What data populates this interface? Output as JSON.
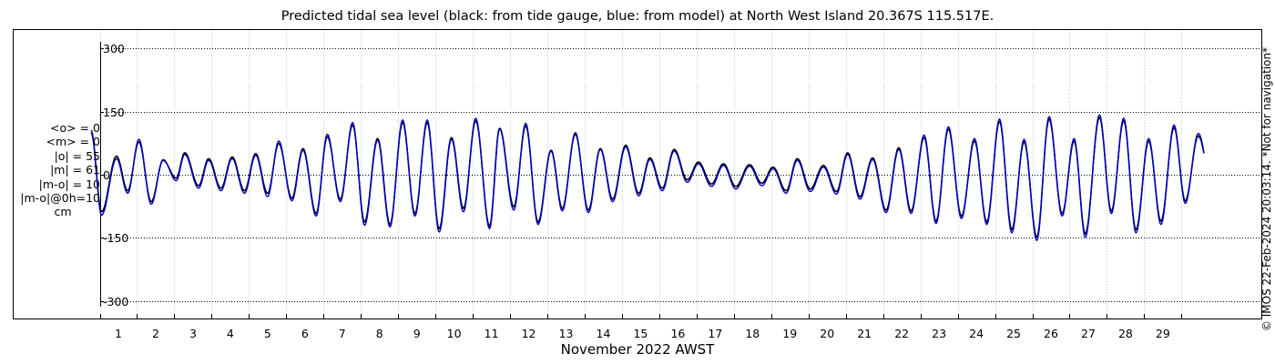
{
  "chart_data": {
    "type": "line",
    "title": "Predicted tidal sea level (black: from tide gauge, blue: from model) at North West Island 20.367S 115.517E.",
    "xlabel": "November 2022 AWST",
    "ylabel": "",
    "ylim": [
      -320,
      320
    ],
    "yticks": [
      -300,
      -150,
      0,
      150,
      300
    ],
    "ytick_labels": [
      "-300",
      "-150",
      "0",
      "150",
      "300"
    ],
    "xticks": [
      1,
      2,
      3,
      4,
      5,
      6,
      7,
      8,
      9,
      10,
      11,
      12,
      13,
      14,
      15,
      16,
      17,
      18,
      19,
      20,
      21,
      22,
      23,
      24,
      25,
      26,
      27,
      28,
      29
    ],
    "xlim": [
      -0.4,
      30.1
    ],
    "x_unit": "day of November 2022",
    "grid": true,
    "series": [
      {
        "color": "#000000",
        "peaks": [
          [
            0.27,
            100
          ],
          [
            0.55,
            -88
          ],
          [
            0.95,
            44
          ],
          [
            1.25,
            -38
          ],
          [
            1.55,
            78
          ],
          [
            1.88,
            -64
          ],
          [
            2.2,
            34
          ],
          [
            2.55,
            -8
          ],
          [
            2.78,
            52
          ],
          [
            3.15,
            -26
          ],
          [
            3.42,
            38
          ],
          [
            3.75,
            -32
          ],
          [
            4.05,
            42
          ],
          [
            4.38,
            -38
          ],
          [
            4.68,
            50
          ],
          [
            5.0,
            -44
          ],
          [
            5.3,
            74
          ],
          [
            5.65,
            -56
          ],
          [
            5.95,
            62
          ],
          [
            6.3,
            -92
          ],
          [
            6.6,
            90
          ],
          [
            6.95,
            -58
          ],
          [
            7.28,
            118
          ],
          [
            7.6,
            -112
          ],
          [
            7.95,
            86
          ],
          [
            8.28,
            -118
          ],
          [
            8.62,
            124
          ],
          [
            8.95,
            -92
          ],
          [
            9.28,
            124
          ],
          [
            9.6,
            -128
          ],
          [
            9.93,
            88
          ],
          [
            10.25,
            -80
          ],
          [
            10.58,
            128
          ],
          [
            10.95,
            -122
          ],
          [
            11.22,
            110
          ],
          [
            11.6,
            -76
          ],
          [
            11.92,
            116
          ],
          [
            12.25,
            -112
          ],
          [
            12.6,
            58
          ],
          [
            12.9,
            -80
          ],
          [
            13.25,
            96
          ],
          [
            13.6,
            -84
          ],
          [
            13.92,
            62
          ],
          [
            14.25,
            -58
          ],
          [
            14.6,
            70
          ],
          [
            14.95,
            -44
          ],
          [
            15.25,
            40
          ],
          [
            15.58,
            -32
          ],
          [
            15.9,
            60
          ],
          [
            16.25,
            -12
          ],
          [
            16.55,
            30
          ],
          [
            16.9,
            -22
          ],
          [
            17.22,
            26
          ],
          [
            17.55,
            -28
          ],
          [
            17.92,
            24
          ],
          [
            18.25,
            -20
          ],
          [
            18.55,
            18
          ],
          [
            18.9,
            -38
          ],
          [
            19.2,
            38
          ],
          [
            19.55,
            -34
          ],
          [
            19.9,
            22
          ],
          [
            20.25,
            -40
          ],
          [
            20.55,
            52
          ],
          [
            20.88,
            -52
          ],
          [
            21.22,
            40
          ],
          [
            21.58,
            -84
          ],
          [
            21.92,
            64
          ],
          [
            22.25,
            -86
          ],
          [
            22.6,
            88
          ],
          [
            22.92,
            -110
          ],
          [
            23.25,
            108
          ],
          [
            23.6,
            -98
          ],
          [
            23.95,
            80
          ],
          [
            24.28,
            -112
          ],
          [
            24.62,
            126
          ],
          [
            24.95,
            -130
          ],
          [
            25.28,
            78
          ],
          [
            25.62,
            -148
          ],
          [
            25.95,
            132
          ],
          [
            26.3,
            -92
          ],
          [
            26.62,
            80
          ],
          [
            26.92,
            -140
          ],
          [
            27.3,
            136
          ],
          [
            27.62,
            -86
          ],
          [
            27.95,
            128
          ],
          [
            28.28,
            -130
          ],
          [
            28.62,
            80
          ],
          [
            28.95,
            -110
          ],
          [
            29.3,
            112
          ],
          [
            29.6,
            -62
          ],
          [
            29.95,
            92
          ],
          [
            30.35,
            -42
          ]
        ]
      },
      {
        "color": "#0000cc",
        "peaks": [
          [
            0.27,
            106
          ],
          [
            0.55,
            -96
          ],
          [
            0.95,
            38
          ],
          [
            1.25,
            -44
          ],
          [
            1.55,
            84
          ],
          [
            1.88,
            -70
          ],
          [
            2.2,
            36
          ],
          [
            2.55,
            -14
          ],
          [
            2.78,
            48
          ],
          [
            3.15,
            -32
          ],
          [
            3.42,
            34
          ],
          [
            3.75,
            -38
          ],
          [
            4.05,
            38
          ],
          [
            4.38,
            -44
          ],
          [
            4.68,
            46
          ],
          [
            5.0,
            -52
          ],
          [
            5.3,
            80
          ],
          [
            5.65,
            -62
          ],
          [
            5.95,
            58
          ],
          [
            6.3,
            -98
          ],
          [
            6.6,
            96
          ],
          [
            6.95,
            -64
          ],
          [
            7.28,
            124
          ],
          [
            7.6,
            -120
          ],
          [
            7.95,
            82
          ],
          [
            8.28,
            -124
          ],
          [
            8.62,
            130
          ],
          [
            8.95,
            -98
          ],
          [
            9.28,
            130
          ],
          [
            9.6,
            -136
          ],
          [
            9.93,
            84
          ],
          [
            10.25,
            -88
          ],
          [
            10.58,
            134
          ],
          [
            10.95,
            -128
          ],
          [
            11.22,
            108
          ],
          [
            11.6,
            -84
          ],
          [
            11.92,
            122
          ],
          [
            12.25,
            -118
          ],
          [
            12.6,
            56
          ],
          [
            12.9,
            -86
          ],
          [
            13.25,
            100
          ],
          [
            13.6,
            -90
          ],
          [
            13.92,
            60
          ],
          [
            14.25,
            -64
          ],
          [
            14.6,
            66
          ],
          [
            14.95,
            -50
          ],
          [
            15.25,
            36
          ],
          [
            15.58,
            -38
          ],
          [
            15.9,
            56
          ],
          [
            16.25,
            -18
          ],
          [
            16.55,
            26
          ],
          [
            16.9,
            -28
          ],
          [
            17.22,
            22
          ],
          [
            17.55,
            -34
          ],
          [
            17.92,
            20
          ],
          [
            18.25,
            -26
          ],
          [
            18.55,
            14
          ],
          [
            18.9,
            -44
          ],
          [
            19.2,
            34
          ],
          [
            19.55,
            -40
          ],
          [
            19.9,
            18
          ],
          [
            20.25,
            -46
          ],
          [
            20.55,
            48
          ],
          [
            20.88,
            -58
          ],
          [
            21.22,
            36
          ],
          [
            21.58,
            -90
          ],
          [
            21.92,
            60
          ],
          [
            22.25,
            -92
          ],
          [
            22.6,
            94
          ],
          [
            22.92,
            -116
          ],
          [
            23.25,
            114
          ],
          [
            23.6,
            -104
          ],
          [
            23.95,
            86
          ],
          [
            24.28,
            -118
          ],
          [
            24.62,
            132
          ],
          [
            24.95,
            -138
          ],
          [
            25.28,
            84
          ],
          [
            25.62,
            -156
          ],
          [
            25.95,
            138
          ],
          [
            26.3,
            -98
          ],
          [
            26.62,
            86
          ],
          [
            26.92,
            -148
          ],
          [
            27.3,
            142
          ],
          [
            27.62,
            -92
          ],
          [
            27.95,
            134
          ],
          [
            28.28,
            -138
          ],
          [
            28.62,
            86
          ],
          [
            28.95,
            -118
          ],
          [
            29.3,
            118
          ],
          [
            29.6,
            -68
          ],
          [
            29.95,
            98
          ],
          [
            30.35,
            -48
          ]
        ]
      }
    ]
  },
  "stats": {
    "mean_obs": "<o> = 0",
    "mean_model": "<m> = 0",
    "abs_obs": "|o| = 55",
    "abs_model": "|m| = 61",
    "abs_diff": "|m-o| = 10",
    "abs_diff_0h": "|m-o|@0h=10",
    "unit": "cm"
  },
  "credit": "© IMOS 22-Feb-2024 20:03:14. *Not for navigation*"
}
